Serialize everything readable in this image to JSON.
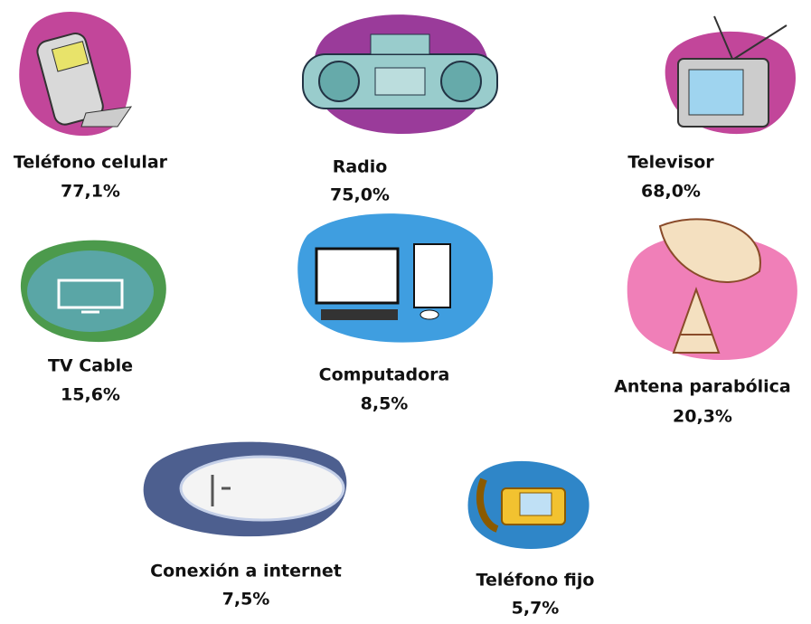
{
  "items": [
    {
      "label": "Teléfono celular",
      "value": "77,1%"
    },
    {
      "label": "Radio",
      "value": "75,0%"
    },
    {
      "label": "Televisor",
      "value": "68,0%"
    },
    {
      "label": "TV Cable",
      "value": "15,6%"
    },
    {
      "label": "Computadora",
      "value": "8,5%"
    },
    {
      "label": "Antena parabólica",
      "value": "20,3%"
    },
    {
      "label": "Conexión a internet",
      "value": "7,5%"
    },
    {
      "label": "Teléfono fijo",
      "value": "5,7%"
    }
  ]
}
